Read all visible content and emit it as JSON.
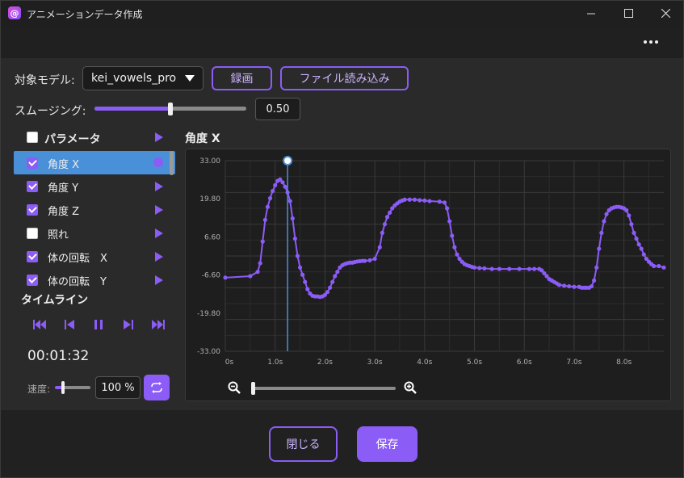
{
  "window": {
    "title": "アニメーションデータ作成",
    "app_icon_glyph": "@"
  },
  "toolbar": {
    "model_label": "対象モデル:",
    "model_value": "kei_vowels_pro",
    "record_label": "録画",
    "load_file_label": "ファイル読み込み"
  },
  "smoothing": {
    "label": "スムージング:",
    "value": "0.50",
    "fraction": 0.5
  },
  "params": {
    "header": "パラメータ",
    "items": [
      {
        "label": "角度 X",
        "checked": true,
        "selected": true
      },
      {
        "label": "角度 Y",
        "checked": true,
        "selected": false
      },
      {
        "label": "角度 Z",
        "checked": true,
        "selected": false
      },
      {
        "label": "照れ",
        "checked": false,
        "selected": false
      },
      {
        "label": "体の回転　X",
        "checked": true,
        "selected": false
      },
      {
        "label": "体の回転　Y",
        "checked": true,
        "selected": false
      }
    ]
  },
  "timeline": {
    "title": "タイムライン",
    "time": "00:01:32",
    "speed_label": "速度:",
    "speed_value": "100 %"
  },
  "graph": {
    "title": "角度 X"
  },
  "chart_data": {
    "type": "line",
    "title": "角度 X",
    "xlabel": "",
    "ylabel": "",
    "xlim": [
      0,
      8.8
    ],
    "ylim": [
      -33,
      33
    ],
    "x_ticks": [
      "0s",
      "1.0s",
      "2.0s",
      "3.0s",
      "4.0s",
      "5.0s",
      "6.0s",
      "7.0s",
      "8.0s"
    ],
    "y_ticks": [
      "33.00",
      "19.80",
      "6.60",
      "-6.60",
      "-19.80",
      "-33.00"
    ],
    "grid": true,
    "playhead_x": 1.25,
    "series": [
      {
        "color": "#8b5cf6",
        "x": [
          0.0,
          0.5,
          0.65,
          0.7,
          0.75,
          0.8,
          0.85,
          0.9,
          0.95,
          1.0,
          1.05,
          1.1,
          1.15,
          1.2,
          1.25,
          1.3,
          1.35,
          1.4,
          1.45,
          1.5,
          1.55,
          1.6,
          1.65,
          1.7,
          1.75,
          1.8,
          1.85,
          1.9,
          1.95,
          2.0,
          2.05,
          2.1,
          2.15,
          2.2,
          2.25,
          2.3,
          2.35,
          2.4,
          2.45,
          2.5,
          2.55,
          2.6,
          2.65,
          2.7,
          2.75,
          2.8,
          2.9,
          3.0,
          3.1,
          3.15,
          3.2,
          3.25,
          3.3,
          3.35,
          3.4,
          3.45,
          3.5,
          3.55,
          3.6,
          3.7,
          3.8,
          3.9,
          4.0,
          4.1,
          4.3,
          4.4,
          4.45,
          4.5,
          4.55,
          4.6,
          4.65,
          4.7,
          4.75,
          4.8,
          4.85,
          4.9,
          4.95,
          5.0,
          5.1,
          5.2,
          5.35,
          5.5,
          5.7,
          5.9,
          6.1,
          6.2,
          6.3,
          6.35,
          6.4,
          6.45,
          6.5,
          6.55,
          6.6,
          6.65,
          6.7,
          6.8,
          6.9,
          7.0,
          7.1,
          7.15,
          7.2,
          7.25,
          7.3,
          7.35,
          7.4,
          7.45,
          7.5,
          7.55,
          7.6,
          7.65,
          7.7,
          7.75,
          7.8,
          7.85,
          7.9,
          7.95,
          8.0,
          8.05,
          8.1,
          8.15,
          8.2,
          8.25,
          8.3,
          8.35,
          8.4,
          8.45,
          8.5,
          8.55,
          8.6,
          8.7,
          8.8
        ],
        "y": [
          -7.5,
          -7.0,
          -5.5,
          -2.5,
          5.0,
          12.5,
          17.0,
          20.0,
          22.5,
          24.5,
          26.0,
          26.5,
          25.5,
          24.0,
          22.0,
          19.0,
          13.0,
          6.0,
          0.0,
          -4.0,
          -6.5,
          -9.0,
          -11.5,
          -13.0,
          -13.8,
          -14.0,
          -14.0,
          -14.2,
          -14.0,
          -13.5,
          -12.5,
          -11.0,
          -9.0,
          -7.0,
          -5.5,
          -4.0,
          -3.2,
          -2.8,
          -2.5,
          -2.3,
          -2.3,
          -2.1,
          -1.9,
          -1.8,
          -1.7,
          -1.7,
          -1.5,
          -1.0,
          3.0,
          8.0,
          11.0,
          13.5,
          15.0,
          16.5,
          17.5,
          18.2,
          18.8,
          19.2,
          19.5,
          19.5,
          19.5,
          19.3,
          19.2,
          19.0,
          18.8,
          18.5,
          16.5,
          12.0,
          7.0,
          3.0,
          0.5,
          -1.0,
          -2.0,
          -2.8,
          -3.2,
          -3.5,
          -3.8,
          -4.0,
          -4.2,
          -4.3,
          -4.5,
          -4.5,
          -4.5,
          -4.5,
          -4.5,
          -4.5,
          -4.5,
          -5.0,
          -6.0,
          -7.0,
          -8.0,
          -8.5,
          -9.0,
          -9.5,
          -10.0,
          -10.3,
          -10.5,
          -10.7,
          -10.7,
          -11.0,
          -11.0,
          -11.0,
          -11.0,
          -10.5,
          -8.5,
          -4.0,
          2.5,
          8.0,
          12.0,
          14.5,
          15.8,
          16.5,
          16.8,
          17.0,
          17.0,
          16.8,
          16.5,
          15.8,
          14.0,
          11.0,
          8.0,
          6.0,
          4.0,
          2.5,
          0.5,
          -1.0,
          -2.0,
          -2.8,
          -3.5,
          -3.5,
          -4.0
        ]
      }
    ]
  },
  "zoom": {
    "zoom_out_icon": "zoom-out-icon",
    "zoom_in_icon": "zoom-in-icon",
    "level": 0.0
  },
  "footer": {
    "close_label": "閉じる",
    "save_label": "保存"
  },
  "colors": {
    "accent": "#8b5cf6",
    "selection": "#4a90d9",
    "playhead": "#4a90d9"
  }
}
